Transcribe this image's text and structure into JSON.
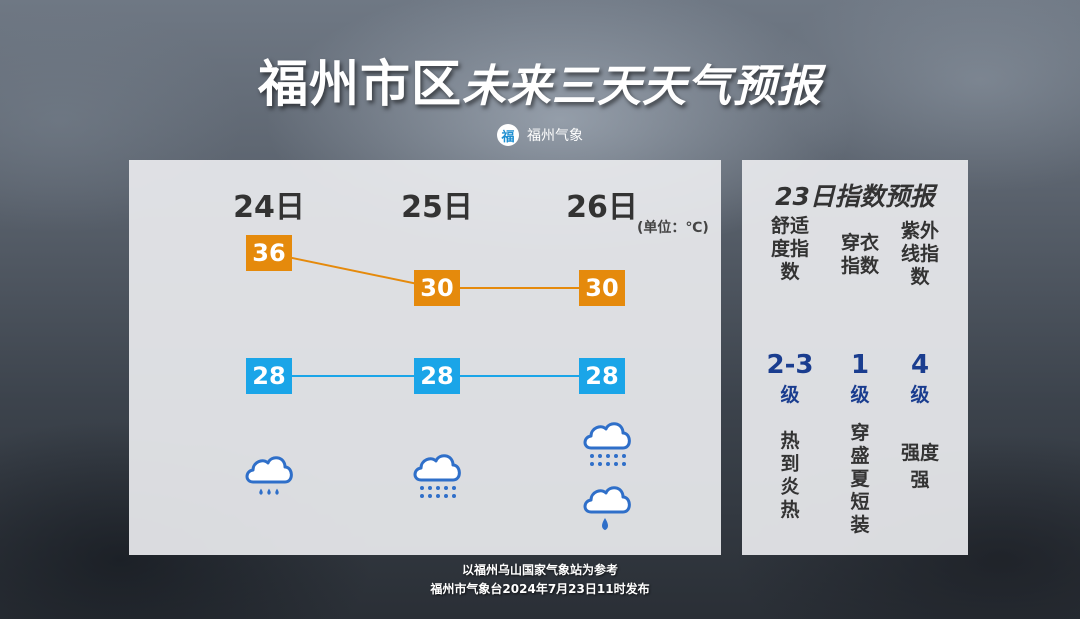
{
  "title": {
    "main": "福州市区",
    "sub": "未来三天天气预报"
  },
  "brand": {
    "logo_text": "福",
    "name": "福州气象"
  },
  "forecast": {
    "unit": "(单位：℃)",
    "days": [
      {
        "date": "24日",
        "high": "36",
        "low": "28",
        "weather_icons": [
          "cloud-rain-light-icon"
        ]
      },
      {
        "date": "25日",
        "high": "30",
        "low": "28",
        "weather_icons": [
          "cloud-rain-heavy-icon"
        ]
      },
      {
        "date": "26日",
        "high": "30",
        "low": "28",
        "weather_icons": [
          "cloud-rain-heavy-icon",
          "cloud-drizzle-icon"
        ]
      }
    ],
    "colors": {
      "high": "#e58a0c",
      "low": "#1aa5e8",
      "icon": "#2f6fc9"
    }
  },
  "index_panel": {
    "title": "23日指数预报",
    "items": [
      {
        "name": "舒适度指数",
        "value": "2-3",
        "level": "级",
        "desc": "热到炎热"
      },
      {
        "name": "穿衣指数",
        "value": "1",
        "level": "级",
        "desc": "穿盛夏短装"
      },
      {
        "name": "紫外线指数",
        "value": "4",
        "level": "级",
        "desc": "强度强"
      }
    ]
  },
  "footer": {
    "line1": "以福州乌山国家气象站为参考",
    "line2": "福州市气象台2024年7月23日11时发布"
  }
}
